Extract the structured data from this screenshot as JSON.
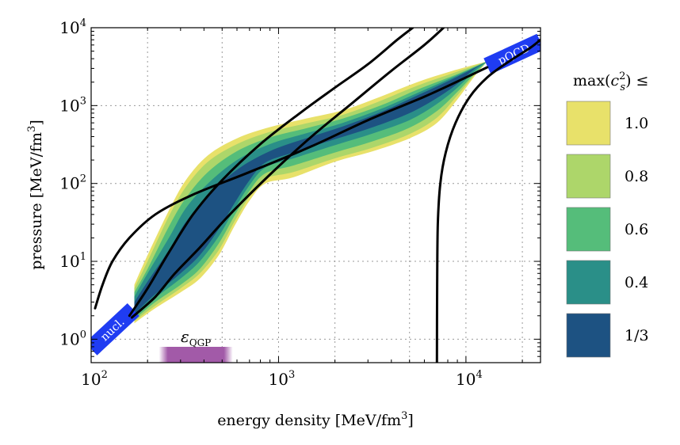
{
  "chart_data": {
    "type": "area",
    "xlabel": "energy density [MeV/fm3]",
    "ylabel": "pressure [MeV/fm3]",
    "xscale": "log",
    "yscale": "log",
    "xlim": [
      100,
      25000
    ],
    "ylim": [
      0.5,
      10000
    ],
    "grid": true,
    "x_ticks": [
      {
        "base": "10",
        "exp": "2"
      },
      {
        "base": "10",
        "exp": "3"
      },
      {
        "base": "10",
        "exp": "4"
      }
    ],
    "y_ticks": [
      {
        "base": "10",
        "exp": "0"
      },
      {
        "base": "10",
        "exp": "1"
      },
      {
        "base": "10",
        "exp": "2"
      },
      {
        "base": "10",
        "exp": "3"
      },
      {
        "base": "10",
        "exp": "4"
      }
    ],
    "legend_title": "max(c_s^2) ≤",
    "legend_position": "right",
    "bands": [
      {
        "name": "1.0",
        "color": "#e8e16a",
        "upper": [
          [
            170,
            5
          ],
          [
            200,
            12
          ],
          [
            260,
            45
          ],
          [
            320,
            110
          ],
          [
            420,
            230
          ],
          [
            600,
            380
          ],
          [
            900,
            530
          ],
          [
            1400,
            680
          ],
          [
            2200,
            870
          ],
          [
            3500,
            1300
          ],
          [
            5500,
            2000
          ],
          [
            8500,
            2800
          ],
          [
            13000,
            3700
          ]
        ],
        "lower": [
          [
            170,
            1.6
          ],
          [
            220,
            2.5
          ],
          [
            300,
            4
          ],
          [
            380,
            6
          ],
          [
            480,
            12
          ],
          [
            580,
            28
          ],
          [
            700,
            60
          ],
          [
            850,
            100
          ],
          [
            1200,
            120
          ],
          [
            2000,
            190
          ],
          [
            3200,
            260
          ],
          [
            5000,
            380
          ],
          [
            7000,
            600
          ],
          [
            9000,
            1200
          ],
          [
            11000,
            2300
          ],
          [
            13000,
            3700
          ]
        ]
      },
      {
        "name": "0.8",
        "color": "#add66a",
        "upper": [
          [
            170,
            4.5
          ],
          [
            200,
            10
          ],
          [
            260,
            38
          ],
          [
            320,
            90
          ],
          [
            420,
            190
          ],
          [
            600,
            320
          ],
          [
            900,
            460
          ],
          [
            1400,
            590
          ],
          [
            2200,
            760
          ],
          [
            3500,
            1150
          ],
          [
            5500,
            1800
          ],
          [
            8500,
            2600
          ],
          [
            13000,
            3700
          ]
        ],
        "lower": [
          [
            170,
            1.7
          ],
          [
            220,
            2.7
          ],
          [
            300,
            4.5
          ],
          [
            380,
            7
          ],
          [
            480,
            14
          ],
          [
            580,
            32
          ],
          [
            700,
            68
          ],
          [
            850,
            115
          ],
          [
            1200,
            140
          ],
          [
            2000,
            210
          ],
          [
            3200,
            290
          ],
          [
            5000,
            430
          ],
          [
            7000,
            700
          ],
          [
            9000,
            1350
          ],
          [
            11000,
            2400
          ],
          [
            13000,
            3700
          ]
        ]
      },
      {
        "name": "0.6",
        "color": "#55bd7a",
        "upper": [
          [
            170,
            4
          ],
          [
            200,
            8
          ],
          [
            260,
            28
          ],
          [
            320,
            65
          ],
          [
            420,
            140
          ],
          [
            600,
            260
          ],
          [
            900,
            390
          ],
          [
            1400,
            510
          ],
          [
            2200,
            680
          ],
          [
            3500,
            1000
          ],
          [
            5500,
            1600
          ],
          [
            8500,
            2400
          ],
          [
            13000,
            3700
          ]
        ],
        "lower": [
          [
            170,
            1.8
          ],
          [
            220,
            3
          ],
          [
            300,
            5
          ],
          [
            380,
            8
          ],
          [
            480,
            17
          ],
          [
            580,
            38
          ],
          [
            700,
            80
          ],
          [
            850,
            135
          ],
          [
            1200,
            170
          ],
          [
            2000,
            250
          ],
          [
            3200,
            350
          ],
          [
            5000,
            520
          ],
          [
            7000,
            850
          ],
          [
            9000,
            1500
          ],
          [
            11000,
            2500
          ],
          [
            13000,
            3700
          ]
        ]
      },
      {
        "name": "0.4",
        "color": "#2a8f88",
        "upper": [
          [
            170,
            3.5
          ],
          [
            200,
            7
          ],
          [
            260,
            20
          ],
          [
            320,
            48
          ],
          [
            420,
            100
          ],
          [
            600,
            200
          ],
          [
            900,
            320
          ],
          [
            1400,
            440
          ],
          [
            2200,
            600
          ],
          [
            3500,
            900
          ],
          [
            5500,
            1450
          ],
          [
            8500,
            2300
          ],
          [
            13000,
            3700
          ]
        ],
        "lower": [
          [
            170,
            2
          ],
          [
            220,
            3.4
          ],
          [
            300,
            6
          ],
          [
            380,
            10
          ],
          [
            480,
            21
          ],
          [
            580,
            46
          ],
          [
            700,
            95
          ],
          [
            850,
            160
          ],
          [
            1200,
            210
          ],
          [
            2000,
            310
          ],
          [
            3200,
            440
          ],
          [
            5000,
            650
          ],
          [
            7000,
            1050
          ],
          [
            9000,
            1700
          ],
          [
            11000,
            2700
          ],
          [
            13000,
            3700
          ]
        ]
      },
      {
        "name": "1/3",
        "color": "#1d5282",
        "upper": [
          [
            170,
            3
          ],
          [
            200,
            5.5
          ],
          [
            260,
            14
          ],
          [
            320,
            32
          ],
          [
            420,
            70
          ],
          [
            600,
            150
          ],
          [
            900,
            260
          ],
          [
            1400,
            380
          ],
          [
            2200,
            540
          ],
          [
            3500,
            820
          ],
          [
            5500,
            1350
          ],
          [
            8500,
            2200
          ],
          [
            13000,
            3700
          ]
        ],
        "lower": [
          [
            170,
            2.1
          ],
          [
            220,
            3.8
          ],
          [
            300,
            7
          ],
          [
            380,
            12
          ],
          [
            480,
            26
          ],
          [
            580,
            55
          ],
          [
            700,
            110
          ],
          [
            850,
            185
          ],
          [
            1200,
            250
          ],
          [
            2000,
            370
          ],
          [
            3200,
            530
          ],
          [
            5000,
            800
          ],
          [
            7000,
            1250
          ],
          [
            9000,
            1900
          ],
          [
            11000,
            2900
          ],
          [
            13000,
            3700
          ]
        ]
      }
    ],
    "black_curves": [
      [
        [
          105,
          2.5
        ],
        [
          115,
          5
        ],
        [
          130,
          10
        ],
        [
          160,
          20
        ],
        [
          220,
          40
        ],
        [
          350,
          72
        ],
        [
          700,
          140
        ],
        [
          1500,
          300
        ],
        [
          3000,
          650
        ],
        [
          6000,
          1300
        ],
        [
          10000,
          2300
        ],
        [
          13000,
          3100
        ]
      ],
      [
        [
          160,
          2
        ],
        [
          200,
          4.5
        ],
        [
          260,
          13
        ],
        [
          350,
          40
        ],
        [
          500,
          110
        ],
        [
          800,
          320
        ],
        [
          1300,
          800
        ],
        [
          2000,
          1700
        ],
        [
          3000,
          3400
        ],
        [
          4300,
          7000
        ],
        [
          5200,
          10000
        ]
      ],
      [
        [
          165,
          1.9
        ],
        [
          220,
          3.5
        ],
        [
          280,
          7
        ],
        [
          380,
          15
        ],
        [
          550,
          40
        ],
        [
          900,
          130
        ],
        [
          1500,
          400
        ],
        [
          2500,
          1100
        ],
        [
          4000,
          2800
        ],
        [
          6000,
          6000
        ],
        [
          7600,
          10000
        ]
      ],
      [
        [
          7000,
          0.5
        ],
        [
          7020,
          5
        ],
        [
          7080,
          30
        ],
        [
          7300,
          100
        ],
        [
          7800,
          250
        ],
        [
          8800,
          600
        ],
        [
          10500,
          1300
        ],
        [
          13000,
          2300
        ],
        [
          17000,
          3700
        ],
        [
          22000,
          5500
        ],
        [
          25000,
          7000
        ]
      ]
    ],
    "nucl_band": {
      "label": "nucl.",
      "color": "#1f3cf2",
      "from": [
        100,
        0.75
      ],
      "to": [
        168,
        2.4
      ]
    },
    "pqcd_band": {
      "label": "pQCD",
      "color": "#1f3cf2",
      "from": [
        13000,
        3200
      ],
      "to": [
        25000,
        6600
      ]
    },
    "qgp_marker": {
      "label": "ε_QGP",
      "color": "#a25aa8",
      "x_range": [
        230,
        570
      ]
    }
  },
  "legend_items": [
    "1.0",
    "0.8",
    "0.6",
    "0.4",
    "1/3"
  ]
}
